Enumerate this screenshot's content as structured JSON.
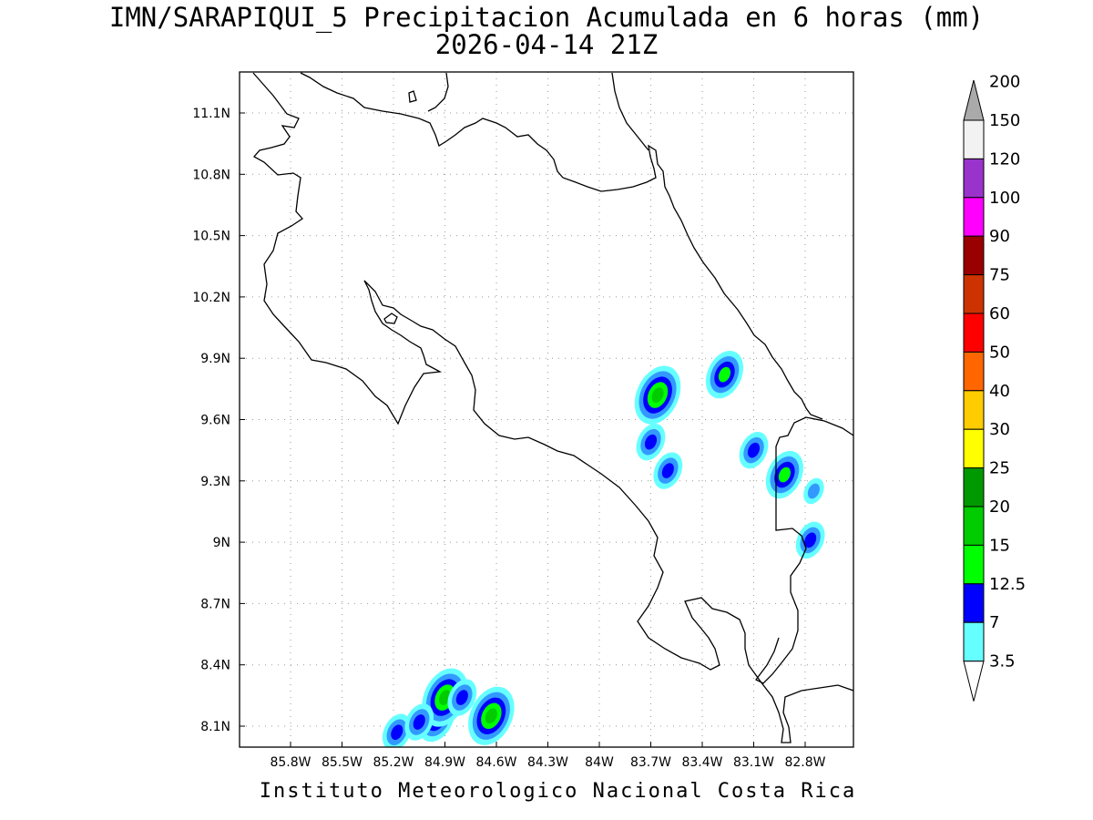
{
  "title": {
    "line1": "IMN/SARAPIQUI_5 Precipitacion Acumulada en 6 horas (mm)",
    "line2": "2026-04-14 21Z"
  },
  "footer": "Instituto Meteorologico Nacional Costa Rica",
  "axes": {
    "lon_labels": [
      "85.8W",
      "85.5W",
      "85.2W",
      "84.9W",
      "84.6W",
      "84.3W",
      "84W",
      "83.7W",
      "83.4W",
      "83.1W",
      "82.8W"
    ],
    "lat_labels": [
      "11.1N",
      "10.8N",
      "10.5N",
      "10.2N",
      "9.9N",
      "9.6N",
      "9.3N",
      "9N",
      "8.7N",
      "8.4N",
      "8.1N"
    ],
    "lon_values": [
      -85.8,
      -85.5,
      -85.2,
      -84.9,
      -84.6,
      -84.3,
      -84.0,
      -83.7,
      -83.4,
      -83.1,
      -82.8
    ],
    "lat_values": [
      11.1,
      10.8,
      10.5,
      10.2,
      9.9,
      9.6,
      9.3,
      9.0,
      8.7,
      8.4,
      8.1
    ]
  },
  "colorbar": {
    "labels": [
      "3.5",
      "7",
      "12.5",
      "15",
      "20",
      "25",
      "30",
      "40",
      "50",
      "60",
      "75",
      "90",
      "100",
      "120",
      "150",
      "200"
    ],
    "colors": [
      "#66ffff",
      "#3399ff",
      "#0000ff",
      "#00ff00",
      "#00cc00",
      "#009900",
      "#ffff00",
      "#ffcc00",
      "#ff6600",
      "#ff0000",
      "#cc3300",
      "#990000",
      "#ff00ff",
      "#9933cc",
      "#f2f2f2",
      "#aaaaaa"
    ]
  },
  "precip_cells": [
    {
      "lon": -85.18,
      "lat": 8.07,
      "level": 2
    },
    {
      "lon": -84.95,
      "lat": 8.14,
      "level": 3
    },
    {
      "lon": -84.9,
      "lat": 8.24,
      "level": 4
    },
    {
      "lon": -84.63,
      "lat": 8.15,
      "level": 4
    },
    {
      "lon": -84.8,
      "lat": 8.24,
      "level": 2
    },
    {
      "lon": -85.05,
      "lat": 8.12,
      "level": 2
    },
    {
      "lon": -83.66,
      "lat": 9.72,
      "level": 4
    },
    {
      "lon": -83.27,
      "lat": 9.82,
      "level": 3
    },
    {
      "lon": -82.92,
      "lat": 9.33,
      "level": 3
    },
    {
      "lon": -83.1,
      "lat": 9.45,
      "level": 2
    },
    {
      "lon": -82.75,
      "lat": 9.25,
      "level": 1
    },
    {
      "lon": -82.77,
      "lat": 9.01,
      "level": 2
    },
    {
      "lon": -83.6,
      "lat": 9.35,
      "level": 2
    },
    {
      "lon": -83.7,
      "lat": 9.49,
      "level": 2
    }
  ]
}
